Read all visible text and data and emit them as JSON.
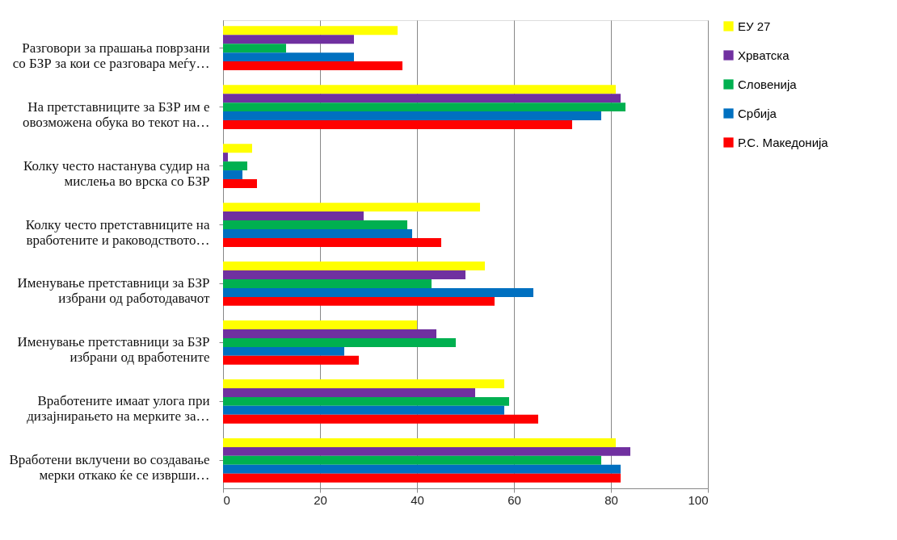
{
  "chart_data": {
    "type": "bar",
    "orientation": "horizontal",
    "categories": [
      "Разговори за прашања поврзани\nсо БЗР за кои се разговара меѓу…",
      "На претставниците за БЗР им е\nовозможена обука во текот на…",
      "Колку често настанува судир на\nмислења во врска со БЗР",
      "Колку често претставниците на\nвработените и раководството…",
      "Именување претставници за БЗР\nизбрани од работодавачот",
      "Именување претставници за БЗР\nизбрани од вработените",
      "Вработените имаат улога при\nдизајнирањето на мерките за…",
      "Вработени вклучени во создавање\nмерки откако ќе се изврши…"
    ],
    "series": [
      {
        "name": "ЕУ 27",
        "color": "#ffff00",
        "values": [
          36,
          81,
          6,
          53,
          54,
          40,
          58,
          81
        ]
      },
      {
        "name": "Хрватска",
        "color": "#7030a0",
        "values": [
          27,
          82,
          1,
          29,
          50,
          44,
          52,
          84
        ]
      },
      {
        "name": "Словенија",
        "color": "#00b050",
        "values": [
          13,
          83,
          5,
          38,
          43,
          48,
          59,
          78
        ]
      },
      {
        "name": "Србија",
        "color": "#0070c0",
        "values": [
          27,
          78,
          4,
          39,
          64,
          25,
          58,
          82
        ]
      },
      {
        "name": "Р.С. Македонија",
        "color": "#ff0000",
        "values": [
          37,
          72,
          7,
          45,
          56,
          28,
          65,
          82
        ]
      }
    ],
    "xlim": [
      0,
      100
    ],
    "xticks": [
      0,
      20,
      40,
      60,
      80,
      100
    ],
    "grid": "x",
    "legend": "right"
  }
}
